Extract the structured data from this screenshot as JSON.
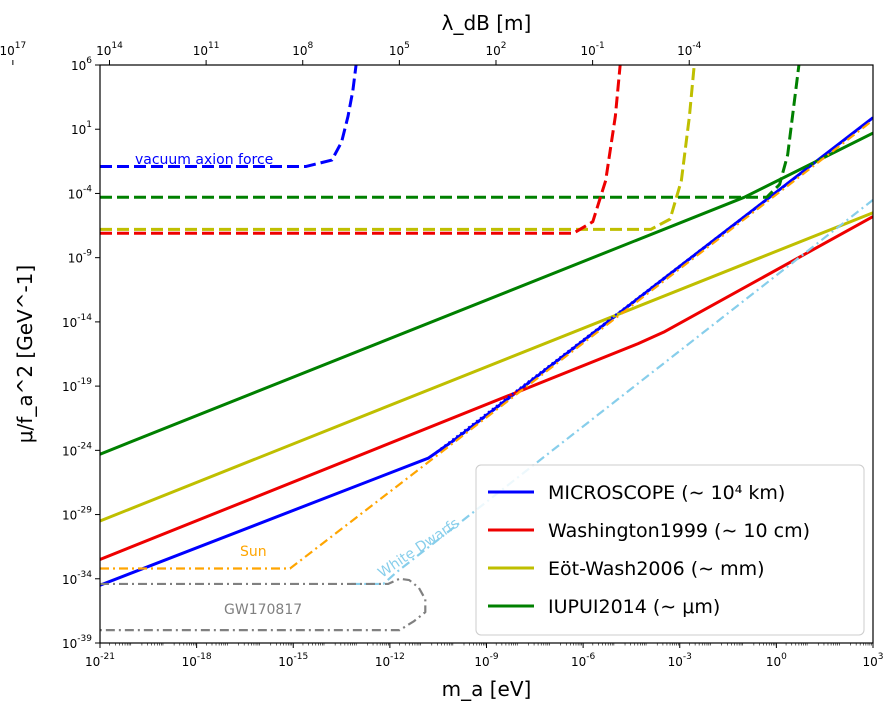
{
  "chart_data": {
    "type": "line",
    "xscale": "log",
    "yscale": "log",
    "xlim": [
      1e-21,
      1000
    ],
    "ylim": [
      1e-39,
      1000000.0
    ],
    "xlabel": "m_a [eV]",
    "ylabel": "μ/f_a^2 [GeV^-1]",
    "top_axis_label": "λ_dB [m]",
    "x_ticks": [
      {
        "exp": "-21"
      },
      {
        "exp": "-18"
      },
      {
        "exp": "-15"
      },
      {
        "exp": "-12"
      },
      {
        "exp": "-9"
      },
      {
        "exp": "-6"
      },
      {
        "exp": "-3"
      },
      {
        "exp": "0"
      },
      {
        "exp": "3"
      }
    ],
    "y_ticks": [
      {
        "exp": "-39"
      },
      {
        "exp": "-34"
      },
      {
        "exp": "-29"
      },
      {
        "exp": "-24"
      },
      {
        "exp": "-19"
      },
      {
        "exp": "-14"
      },
      {
        "exp": "-9"
      },
      {
        "exp": "-4"
      },
      {
        "exp": "1"
      },
      {
        "exp": "6"
      }
    ],
    "top_ticks": [
      {
        "exp": "17"
      },
      {
        "exp": "14"
      },
      {
        "exp": "11"
      },
      {
        "exp": "8"
      },
      {
        "exp": "5"
      },
      {
        "exp": "2"
      },
      {
        "exp": "-1"
      },
      {
        "exp": "-4"
      }
    ],
    "legend_position": "lower right",
    "legend": [
      {
        "label": "MICROSCOPE (∼ 10⁴ km)",
        "color": "#0000ff"
      },
      {
        "label": "Washington1999 (∼ 10 cm)",
        "color": "#ee0000"
      },
      {
        "label": "Eöt-Wash2006 (∼ mm)",
        "color": "#bfbf00"
      },
      {
        "label": "IUPUI2014 (∼ μm)",
        "color": "#008000"
      }
    ],
    "annotations": [
      {
        "name": "vacuum",
        "text": "vacuum axion force",
        "color": "#0000ff"
      },
      {
        "name": "sun",
        "text": "Sun",
        "color": "#ffa500"
      },
      {
        "name": "white-dwarfs",
        "text": "White Dwarfs",
        "color": "#87ceeb"
      },
      {
        "name": "gw",
        "text": "GW170817",
        "color": "#808080"
      }
    ],
    "series": [
      {
        "name": "MICROSCOPE",
        "color": "#0000ff",
        "style": "solid",
        "x": [
          -21,
          -10.8,
          -10,
          3
        ],
        "y": [
          -34.5,
          -24.6,
          -23.2,
          1.9
        ]
      },
      {
        "name": "Washington1999",
        "color": "#ee0000",
        "style": "solid",
        "x": [
          -21,
          -4.3,
          -3.5,
          3
        ],
        "y": [
          -32.5,
          -15.7,
          -14.8,
          -5.8
        ]
      },
      {
        "name": "Eöt-Wash2006",
        "color": "#bfbf00",
        "style": "solid",
        "x": [
          -21,
          -0.5,
          3
        ],
        "y": [
          -29.5,
          -9.0,
          -5.5
        ]
      },
      {
        "name": "IUPUI2014",
        "color": "#008000",
        "style": "solid",
        "x": [
          -21,
          -1.0,
          3
        ],
        "y": [
          -24.3,
          -4.3,
          0.7
        ]
      },
      {
        "name": "MICROSCOPE projection",
        "color": "#0000ff",
        "style": "dotted",
        "x": [
          -10.8,
          3
        ],
        "y": [
          -24.6,
          1.9
        ]
      },
      {
        "name": "vacuum axion force",
        "color": "#0000ff",
        "style": "dashed",
        "x": [
          -21,
          -14.6,
          -13.8,
          -13.5,
          -13.3,
          -13.15,
          -13.05
        ],
        "y": [
          -1.9,
          -1.9,
          -1.4,
          0,
          2,
          4,
          6
        ]
      },
      {
        "name": "IUPUI2014 vacuum",
        "color": "#008000",
        "style": "dashed",
        "x": [
          -21,
          -0.3,
          0.1,
          0.35,
          0.55,
          0.7
        ],
        "y": [
          -4.3,
          -4.3,
          -3.3,
          -1,
          3,
          6
        ]
      },
      {
        "name": "Eöt-Wash2006 vacuum",
        "color": "#bfbf00",
        "style": "dashed",
        "x": [
          -21,
          -3.9,
          -3.3,
          -2.95,
          -2.7,
          -2.55
        ],
        "y": [
          -6.8,
          -6.8,
          -6.0,
          -3,
          2,
          6
        ]
      },
      {
        "name": "Washington1999 vacuum",
        "color": "#ee0000",
        "style": "dashed",
        "x": [
          -21,
          -6.3,
          -5.7,
          -5.3,
          -5.0,
          -4.85
        ],
        "y": [
          -7.1,
          -7.1,
          -6.2,
          -3,
          2,
          6
        ]
      },
      {
        "name": "Sun",
        "color": "#ffa500",
        "style": "dashdot",
        "x": [
          -21,
          -15.1,
          3
        ],
        "y": [
          -33.2,
          -33.2,
          1.7
        ]
      },
      {
        "name": "White Dwarfs",
        "color": "#87ceeb",
        "style": "dashdot",
        "x": [
          -13.2,
          -12.2,
          -11.8,
          3
        ],
        "y": [
          -34.4,
          -34.4,
          -33.5,
          -4.5
        ]
      },
      {
        "name": "GW170817",
        "color": "#808080",
        "style": "dashdot",
        "x": [
          -21,
          -12.05,
          -11.7,
          -11.4,
          -11.1,
          -10.9,
          -10.9,
          -11.25,
          -11.7,
          -21
        ],
        "y": [
          -34.4,
          -34.4,
          -34.0,
          -34.1,
          -34.7,
          -35.6,
          -36.6,
          -37.3,
          -38.0,
          -38.0
        ]
      }
    ]
  }
}
